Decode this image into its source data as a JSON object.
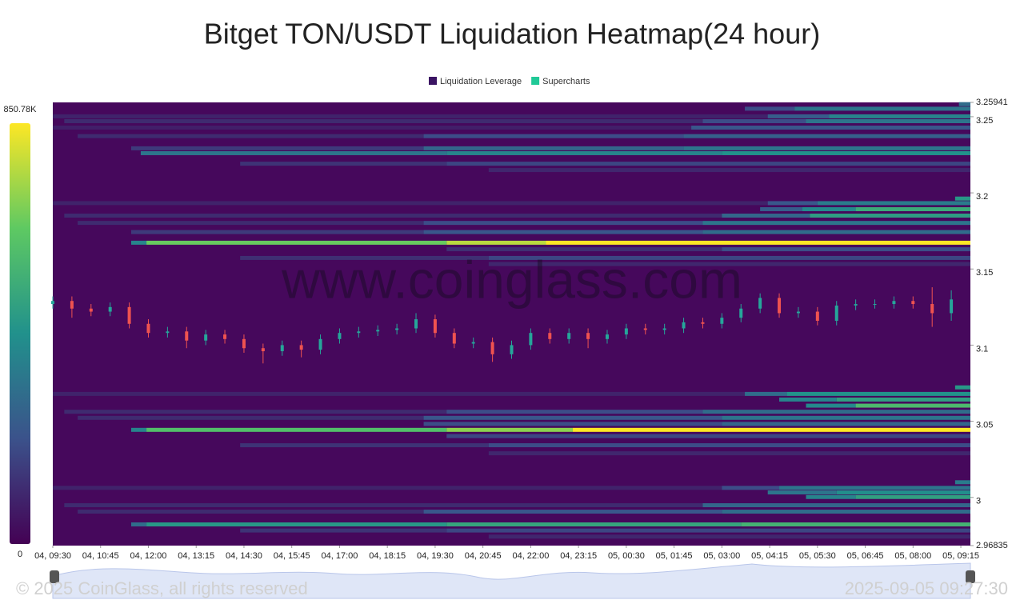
{
  "chart_data": {
    "type": "liquidation-heatmap",
    "title": "Bitget TON/USDT Liquidation Heatmap(24 hour)",
    "legend": [
      {
        "name": "Liquidation Leverage",
        "color": "#3b1463"
      },
      {
        "name": "Supercharts",
        "color": "#20c997"
      }
    ],
    "watermark": "www.coinglass.com",
    "footer_left": "© 2025 CoinGlass, all rights reserved",
    "footer_right": "2025-09-05 09:27:30",
    "xlim": [
      0,
      24
    ],
    "xticks": [
      {
        "value": 0,
        "label": "04, 09:30"
      },
      {
        "value": 1.25,
        "label": "04, 10:45"
      },
      {
        "value": 2.5,
        "label": "04, 12:00"
      },
      {
        "value": 3.75,
        "label": "04, 13:15"
      },
      {
        "value": 5,
        "label": "04, 14:30"
      },
      {
        "value": 6.25,
        "label": "04, 15:45"
      },
      {
        "value": 7.5,
        "label": "04, 17:00"
      },
      {
        "value": 8.75,
        "label": "04, 18:15"
      },
      {
        "value": 10,
        "label": "04, 19:30"
      },
      {
        "value": 11.25,
        "label": "04, 20:45"
      },
      {
        "value": 12.5,
        "label": "04, 22:00"
      },
      {
        "value": 13.75,
        "label": "04, 23:15"
      },
      {
        "value": 15,
        "label": "05, 00:30"
      },
      {
        "value": 16.25,
        "label": "05, 01:45"
      },
      {
        "value": 17.5,
        "label": "05, 03:00"
      },
      {
        "value": 18.75,
        "label": "05, 04:15"
      },
      {
        "value": 20,
        "label": "05, 05:30"
      },
      {
        "value": 21.25,
        "label": "05, 06:45"
      },
      {
        "value": 22.5,
        "label": "05, 08:00"
      },
      {
        "value": 23.75,
        "label": "05, 09:15"
      }
    ],
    "ylim": [
      2.96835,
      3.25941
    ],
    "yticks": [
      2.96835,
      3,
      3.05,
      3.1,
      3.15,
      3.2,
      3.25,
      3.25941
    ],
    "zlim": [
      0,
      850780
    ],
    "zticks": [
      0,
      {
        "value": 850780,
        "label": "850.78K"
      }
    ],
    "colorscale": [
      "#440154",
      "#3b528b",
      "#21918c",
      "#5ec962",
      "#fde725"
    ],
    "background": "#46085c",
    "bands": [
      {
        "price": 3.258,
        "segments": [
          [
            23.7,
            300000
          ]
        ]
      },
      {
        "price": 3.255,
        "segments": [
          [
            18.1,
            200000
          ],
          [
            19.4,
            330000
          ]
        ]
      },
      {
        "price": 3.25,
        "segments": [
          [
            0,
            90000
          ],
          [
            18.7,
            250000
          ],
          [
            20.3,
            380000
          ]
        ]
      },
      {
        "price": 3.2468,
        "segments": [
          [
            0.3,
            110000
          ],
          [
            17.0,
            200000
          ],
          [
            19.7,
            330000
          ]
        ]
      },
      {
        "price": 3.2426,
        "segments": [
          [
            0,
            80000
          ],
          [
            16.7,
            230000
          ]
        ]
      },
      {
        "price": 3.237,
        "segments": [
          [
            0.65,
            110000
          ],
          [
            9.7,
            200000
          ],
          [
            16.5,
            260000
          ]
        ]
      },
      {
        "price": 3.229,
        "segments": [
          [
            2.05,
            150000
          ],
          [
            9.7,
            280000
          ],
          [
            16.5,
            330000
          ]
        ]
      },
      {
        "price": 3.2258,
        "segments": [
          [
            2.3,
            330000
          ],
          [
            10.3,
            380000
          ],
          [
            17.5,
            430000
          ]
        ]
      },
      {
        "price": 3.2189,
        "segments": [
          [
            4.9,
            130000
          ],
          [
            10.3,
            180000
          ]
        ]
      },
      {
        "price": 3.2147,
        "segments": [
          [
            11.4,
            100000
          ]
        ]
      },
      {
        "price": 3.196,
        "segments": [
          [
            23.6,
            450000
          ]
        ]
      },
      {
        "price": 3.193,
        "segments": [
          [
            0,
            90000
          ],
          [
            18.7,
            230000
          ],
          [
            20.0,
            350000
          ]
        ]
      },
      {
        "price": 3.189,
        "segments": [
          [
            18.5,
            250000
          ],
          [
            19.6,
            400000
          ],
          [
            21.0,
            520000
          ]
        ]
      },
      {
        "price": 3.1848,
        "segments": [
          [
            0.3,
            110000
          ],
          [
            17.5,
            280000
          ],
          [
            19.8,
            470000
          ]
        ]
      },
      {
        "price": 3.18,
        "segments": [
          [
            0.65,
            110000
          ],
          [
            9.7,
            200000
          ],
          [
            17.0,
            330000
          ]
        ]
      },
      {
        "price": 3.174,
        "segments": [
          [
            2.05,
            150000
          ],
          [
            9.7,
            230000
          ],
          [
            17.0,
            300000
          ]
        ]
      },
      {
        "price": 3.167,
        "segments": [
          [
            2.05,
            380000
          ],
          [
            2.45,
            650000
          ],
          [
            10.3,
            760000
          ],
          [
            12.9,
            850000
          ]
        ]
      },
      {
        "price": 3.1627,
        "segments": [
          [
            10.3,
            120000
          ],
          [
            17.5,
            200000
          ]
        ]
      },
      {
        "price": 3.157,
        "segments": [
          [
            4.9,
            120000
          ],
          [
            11.4,
            180000
          ]
        ]
      },
      {
        "price": 3.153,
        "segments": [
          [
            11.4,
            100000
          ]
        ]
      },
      {
        "price": 3.072,
        "segments": [
          [
            23.6,
            450000
          ]
        ]
      },
      {
        "price": 3.0677,
        "segments": [
          [
            0,
            90000
          ],
          [
            18.1,
            300000
          ],
          [
            19.2,
            430000
          ]
        ]
      },
      {
        "price": 3.064,
        "segments": [
          [
            19.0,
            380000
          ],
          [
            20.5,
            480000
          ]
        ]
      },
      {
        "price": 3.06,
        "segments": [
          [
            19.7,
            400000
          ],
          [
            21.0,
            580000
          ]
        ]
      },
      {
        "price": 3.056,
        "segments": [
          [
            0.3,
            110000
          ],
          [
            10.3,
            200000
          ],
          [
            17.0,
            300000
          ]
        ]
      },
      {
        "price": 3.052,
        "segments": [
          [
            0.65,
            110000
          ],
          [
            9.7,
            230000
          ],
          [
            17.5,
            330000
          ]
        ]
      },
      {
        "price": 3.048,
        "segments": [
          [
            9.7,
            200000
          ],
          [
            17.5,
            280000
          ]
        ]
      },
      {
        "price": 3.0441,
        "segments": [
          [
            2.05,
            380000
          ],
          [
            2.45,
            600000
          ],
          [
            10.3,
            700000
          ],
          [
            13.6,
            850780
          ]
        ]
      },
      {
        "price": 3.04,
        "segments": [
          [
            10.3,
            180000
          ]
        ]
      },
      {
        "price": 3.034,
        "segments": [
          [
            4.9,
            130000
          ],
          [
            11.4,
            200000
          ]
        ]
      },
      {
        "price": 3.0287,
        "segments": [
          [
            11.4,
            100000
          ]
        ]
      },
      {
        "price": 3.0097,
        "segments": [
          [
            23.6,
            350000
          ]
        ]
      },
      {
        "price": 3.006,
        "segments": [
          [
            0,
            90000
          ],
          [
            17.5,
            200000
          ],
          [
            19.0,
            330000
          ]
        ]
      },
      {
        "price": 3.003,
        "segments": [
          [
            18.7,
            330000
          ],
          [
            20.5,
            420000
          ]
        ]
      },
      {
        "price": 3.0,
        "segments": [
          [
            19.7,
            380000
          ],
          [
            21.0,
            480000
          ]
        ]
      },
      {
        "price": 2.9946,
        "segments": [
          [
            0.3,
            110000
          ],
          [
            17.0,
            280000
          ]
        ]
      },
      {
        "price": 2.9904,
        "segments": [
          [
            0.65,
            110000
          ],
          [
            9.7,
            230000
          ],
          [
            17.5,
            300000
          ]
        ]
      },
      {
        "price": 2.982,
        "segments": [
          [
            2.05,
            300000
          ],
          [
            2.45,
            450000
          ],
          [
            10.3,
            500000
          ],
          [
            18.0,
            550000
          ]
        ]
      },
      {
        "price": 2.978,
        "segments": [
          [
            4.9,
            130000
          ],
          [
            10.3,
            180000
          ]
        ]
      },
      {
        "price": 2.974,
        "segments": [
          [
            11.4,
            100000
          ]
        ]
      }
    ],
    "candles": {
      "up_color": "#26a69a",
      "down_color": "#ef5350",
      "x": [
        0,
        0.5,
        1,
        1.5,
        2,
        2.5,
        3,
        3.5,
        4,
        4.5,
        5,
        5.5,
        6,
        6.5,
        7,
        7.5,
        8,
        8.5,
        9,
        9.5,
        10,
        10.5,
        11,
        11.5,
        12,
        12.5,
        13,
        13.5,
        14,
        14.5,
        15,
        15.5,
        16,
        16.5,
        17,
        17.5,
        18,
        18.5,
        19,
        19.5,
        20,
        20.5,
        21,
        21.5,
        22,
        22.5,
        23,
        23.5
      ],
      "open": [
        3.127,
        3.129,
        3.124,
        3.122,
        3.125,
        3.114,
        3.108,
        3.109,
        3.103,
        3.107,
        3.104,
        3.098,
        3.096,
        3.1,
        3.097,
        3.104,
        3.108,
        3.109,
        3.11,
        3.111,
        3.117,
        3.108,
        3.101,
        3.102,
        3.094,
        3.1,
        3.108,
        3.104,
        3.108,
        3.104,
        3.107,
        3.111,
        3.11,
        3.111,
        3.115,
        3.114,
        3.118,
        3.124,
        3.131,
        3.121,
        3.122,
        3.116,
        3.126,
        3.127,
        3.127,
        3.129,
        3.127,
        3.121
      ],
      "high": [
        3.132,
        3.132,
        3.127,
        3.128,
        3.128,
        3.117,
        3.112,
        3.112,
        3.11,
        3.11,
        3.107,
        3.101,
        3.103,
        3.103,
        3.107,
        3.111,
        3.112,
        3.113,
        3.114,
        3.121,
        3.12,
        3.111,
        3.105,
        3.105,
        3.103,
        3.111,
        3.111,
        3.111,
        3.111,
        3.11,
        3.114,
        3.114,
        3.114,
        3.118,
        3.118,
        3.121,
        3.127,
        3.134,
        3.134,
        3.125,
        3.125,
        3.129,
        3.13,
        3.13,
        3.132,
        3.132,
        3.138,
        3.136
      ],
      "low": [
        3.124,
        3.118,
        3.119,
        3.119,
        3.111,
        3.105,
        3.105,
        3.098,
        3.1,
        3.101,
        3.095,
        3.088,
        3.093,
        3.092,
        3.094,
        3.101,
        3.105,
        3.106,
        3.107,
        3.108,
        3.105,
        3.098,
        3.098,
        3.089,
        3.091,
        3.097,
        3.101,
        3.101,
        3.098,
        3.101,
        3.104,
        3.107,
        3.107,
        3.108,
        3.111,
        3.111,
        3.115,
        3.121,
        3.118,
        3.118,
        3.113,
        3.113,
        3.123,
        3.124,
        3.124,
        3.124,
        3.112,
        3.116
      ],
      "close": [
        3.129,
        3.124,
        3.122,
        3.125,
        3.114,
        3.108,
        3.109,
        3.103,
        3.107,
        3.104,
        3.098,
        3.096,
        3.1,
        3.097,
        3.104,
        3.108,
        3.109,
        3.11,
        3.111,
        3.117,
        3.108,
        3.101,
        3.102,
        3.094,
        3.1,
        3.108,
        3.104,
        3.108,
        3.104,
        3.107,
        3.111,
        3.11,
        3.111,
        3.115,
        3.114,
        3.118,
        3.124,
        3.131,
        3.121,
        3.122,
        3.116,
        3.126,
        3.127,
        3.127,
        3.129,
        3.127,
        3.121,
        3.13
      ]
    }
  }
}
